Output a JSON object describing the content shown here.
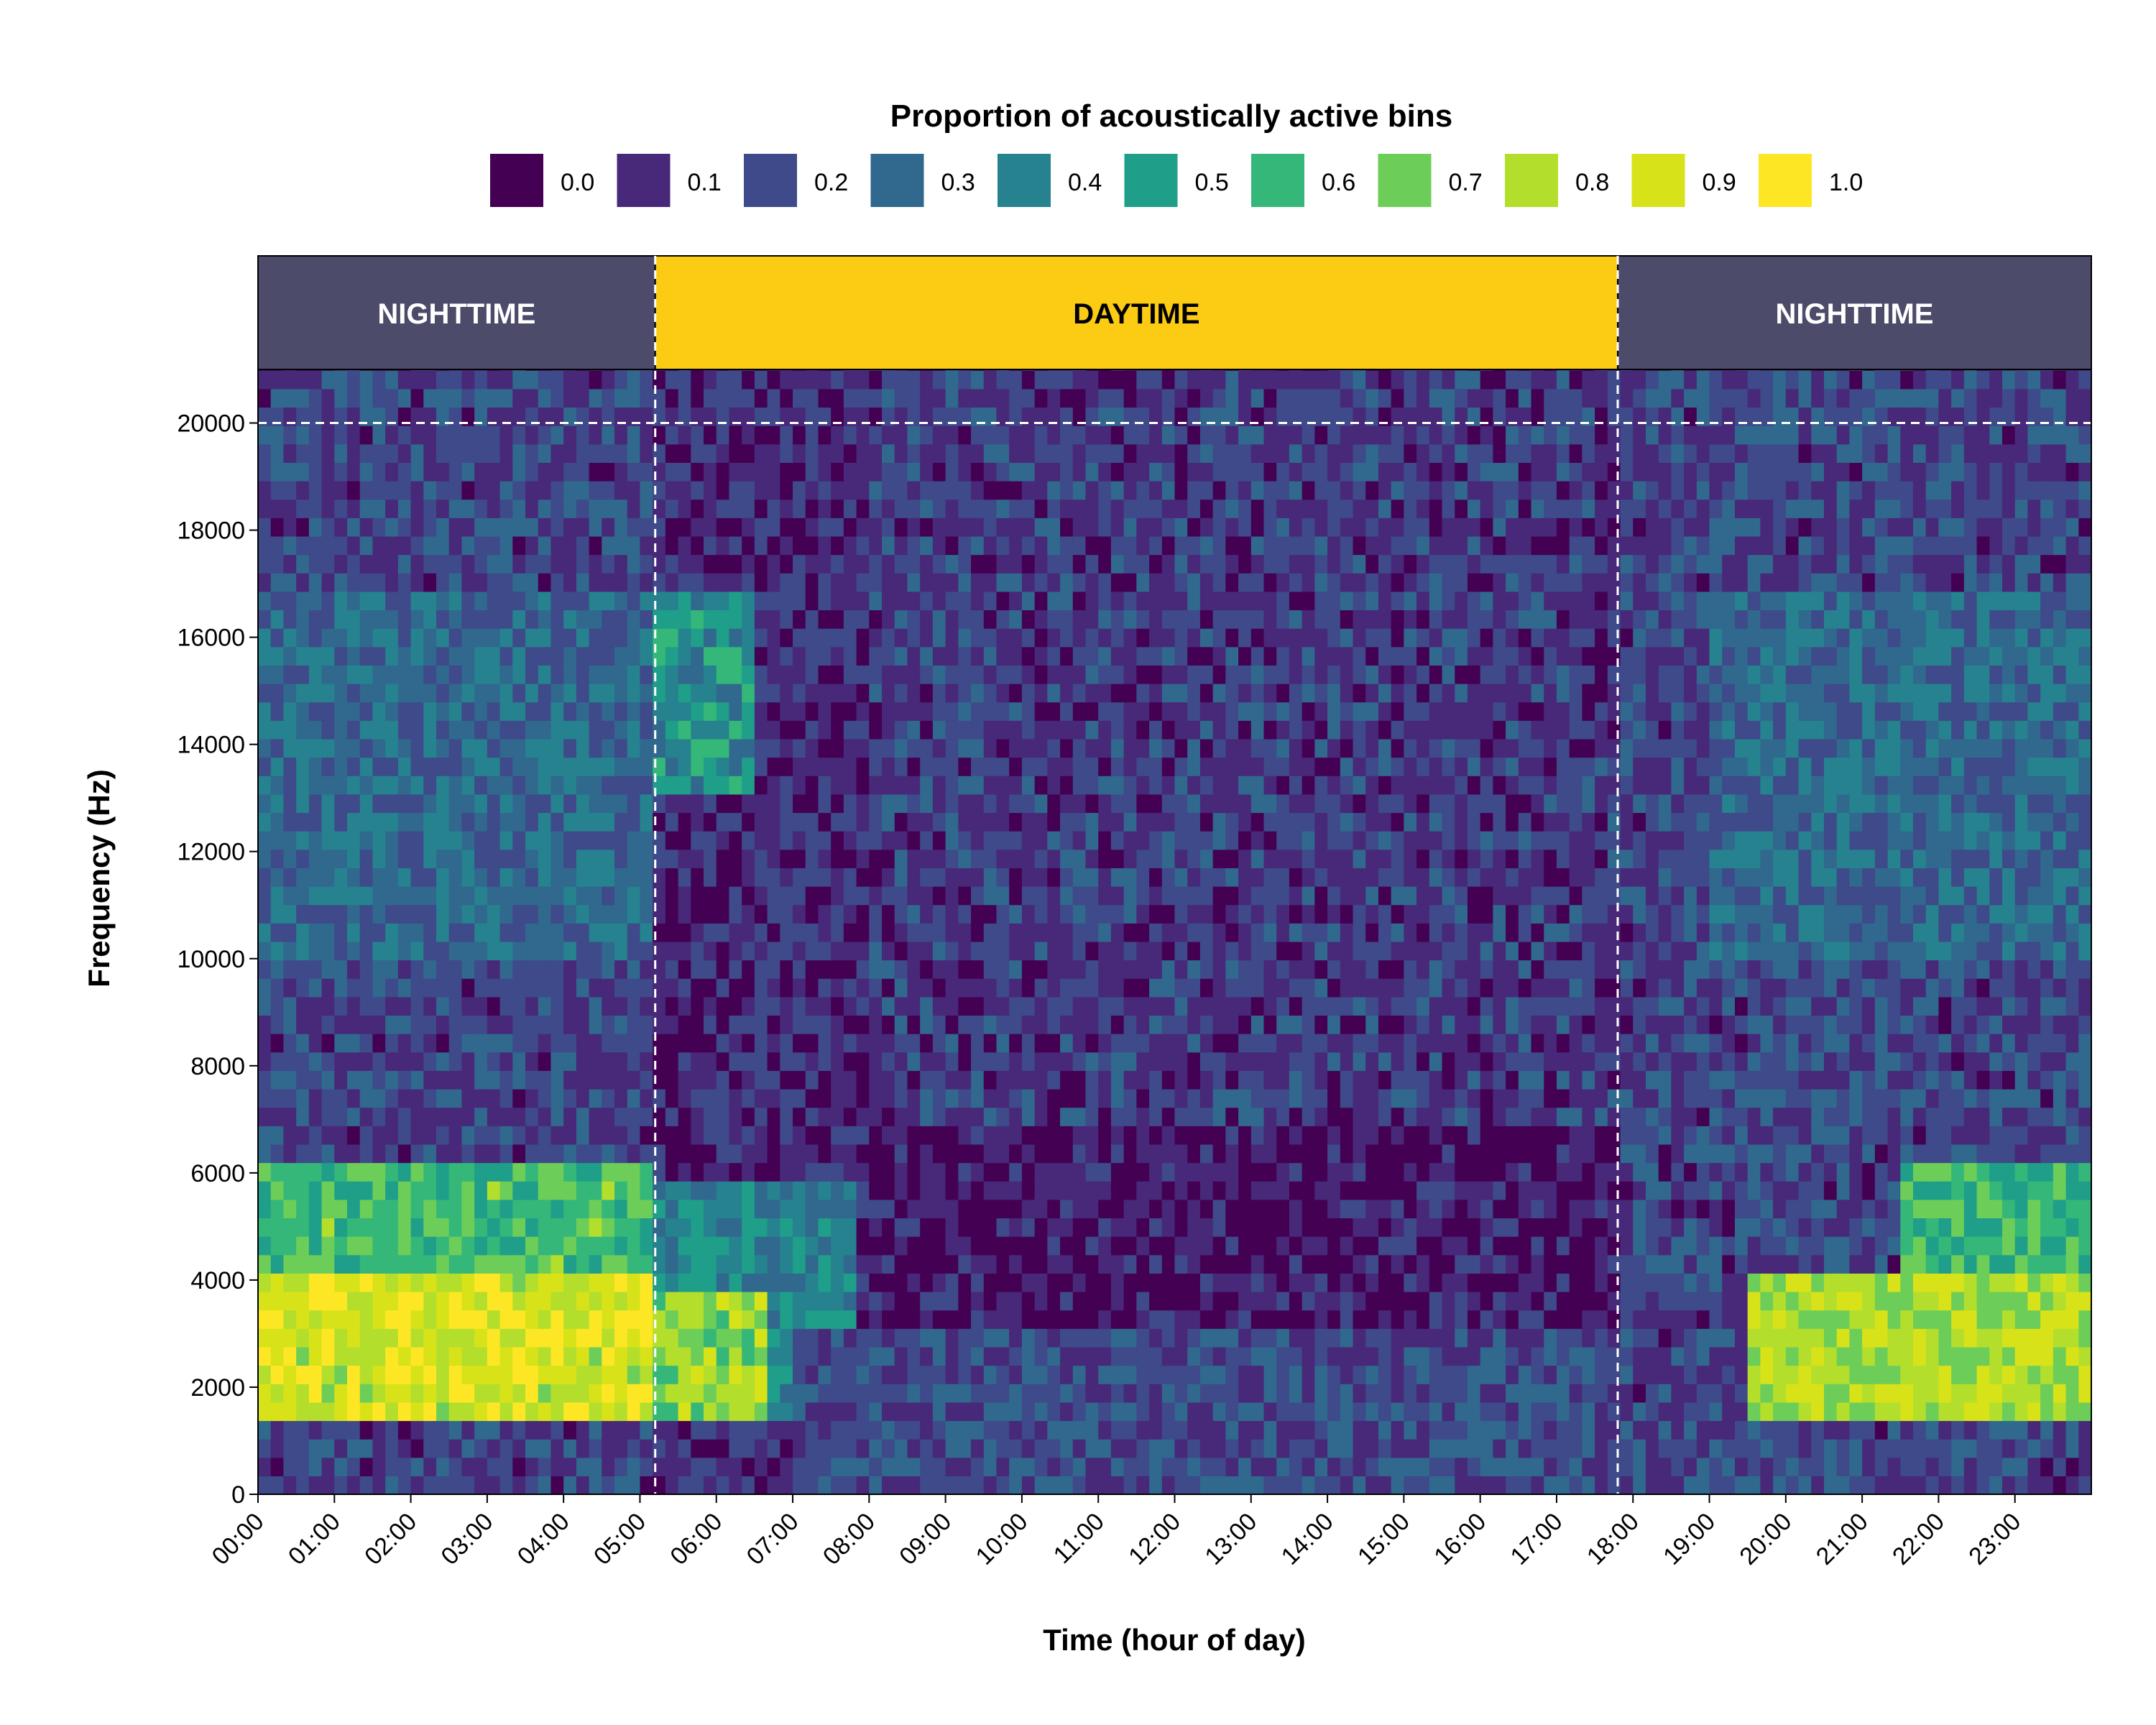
{
  "chart_data": {
    "type": "heatmap",
    "title": "",
    "xlabel": "Time (hour of day)",
    "ylabel": "Frequency (Hz)",
    "legend": {
      "title": "Proportion of acoustically active bins",
      "placement": "top",
      "breaks": [
        "0.0",
        "0.1",
        "0.2",
        "0.3",
        "0.4",
        "0.5",
        "0.6",
        "0.7",
        "0.8",
        "0.9",
        "1.0"
      ],
      "colors": [
        "#440154",
        "#482878",
        "#3E4A89",
        "#31688E",
        "#26828E",
        "#1F9E89",
        "#35B779",
        "#6DCD59",
        "#B4DE2C",
        "#D8E219",
        "#FDE725"
      ]
    },
    "x_ticks": [
      "00:00",
      "01:00",
      "02:00",
      "03:00",
      "04:00",
      "05:00",
      "06:00",
      "07:00",
      "08:00",
      "09:00",
      "10:00",
      "11:00",
      "12:00",
      "13:00",
      "14:00",
      "15:00",
      "16:00",
      "17:00",
      "18:00",
      "19:00",
      "20:00",
      "21:00",
      "22:00",
      "23:00"
    ],
    "y_ticks": [
      0,
      2000,
      4000,
      6000,
      8000,
      10000,
      12000,
      14000,
      16000,
      18000,
      20000
    ],
    "xlim_hours": [
      0,
      24
    ],
    "ylim_hz": [
      0,
      21000
    ],
    "time_step_minutes": 10,
    "freq_step_hz": 344,
    "periods": [
      {
        "label": "NIGHTTIME",
        "start_h": 0,
        "end_h": 5.2,
        "color": "#4D4B6A",
        "text_color": "#ffffff"
      },
      {
        "label": "DAYTIME",
        "start_h": 5.2,
        "end_h": 17.8,
        "color": "#FCCB14",
        "text_color": "#000000"
      },
      {
        "label": "NIGHTTIME",
        "start_h": 17.8,
        "end_h": 24,
        "color": "#4D4B6A",
        "text_color": "#ffffff"
      }
    ],
    "reference_lines": {
      "vertical_hours": [
        5.2,
        17.8
      ],
      "horizontal_hz": [
        20000
      ],
      "style": "dashed",
      "color": "#ffffff"
    },
    "regions": [
      {
        "name": "night1-high",
        "t": [
          0,
          5.2
        ],
        "f": [
          0,
          21000
        ],
        "value": 0.18
      },
      {
        "name": "night1-mid",
        "t": [
          0,
          5.2
        ],
        "f": [
          10000,
          17000
        ],
        "value": 0.3
      },
      {
        "name": "night1-band-high",
        "t": [
          0,
          5.2
        ],
        "f": [
          1300,
          6200
        ],
        "value": 0.62
      },
      {
        "name": "night1-band-core",
        "t": [
          0,
          5.2
        ],
        "f": [
          1300,
          4000
        ],
        "value": 0.88
      },
      {
        "name": "dawn-high",
        "t": [
          5.2,
          6.5
        ],
        "f": [
          13000,
          17000
        ],
        "value": 0.45
      },
      {
        "name": "dawn-band",
        "t": [
          5.2,
          7.9
        ],
        "f": [
          1300,
          6000
        ],
        "value": 0.4
      },
      {
        "name": "dawn-core",
        "t": [
          5.2,
          6.6
        ],
        "f": [
          1500,
          3800
        ],
        "value": 0.75
      },
      {
        "name": "day-low",
        "t": [
          8,
          17.8
        ],
        "f": [
          0,
          7000
        ],
        "value": 0.04
      },
      {
        "name": "day-mid",
        "t": [
          8,
          17.8
        ],
        "f": [
          7000,
          21000
        ],
        "value": 0.15
      },
      {
        "name": "day-base",
        "t": [
          7,
          17.8
        ],
        "f": [
          0,
          3000
        ],
        "value": 0.2
      },
      {
        "name": "night2-high",
        "t": [
          17.8,
          24
        ],
        "f": [
          0,
          21000
        ],
        "value": 0.18
      },
      {
        "name": "night2-mid",
        "t": [
          19,
          24
        ],
        "f": [
          10000,
          17000
        ],
        "value": 0.3
      },
      {
        "name": "night2-band",
        "t": [
          19.5,
          24
        ],
        "f": [
          1300,
          4200
        ],
        "value": 0.8
      },
      {
        "name": "night2-upper",
        "t": [
          21.5,
          24
        ],
        "f": [
          4200,
          6200
        ],
        "value": 0.6
      }
    ]
  }
}
